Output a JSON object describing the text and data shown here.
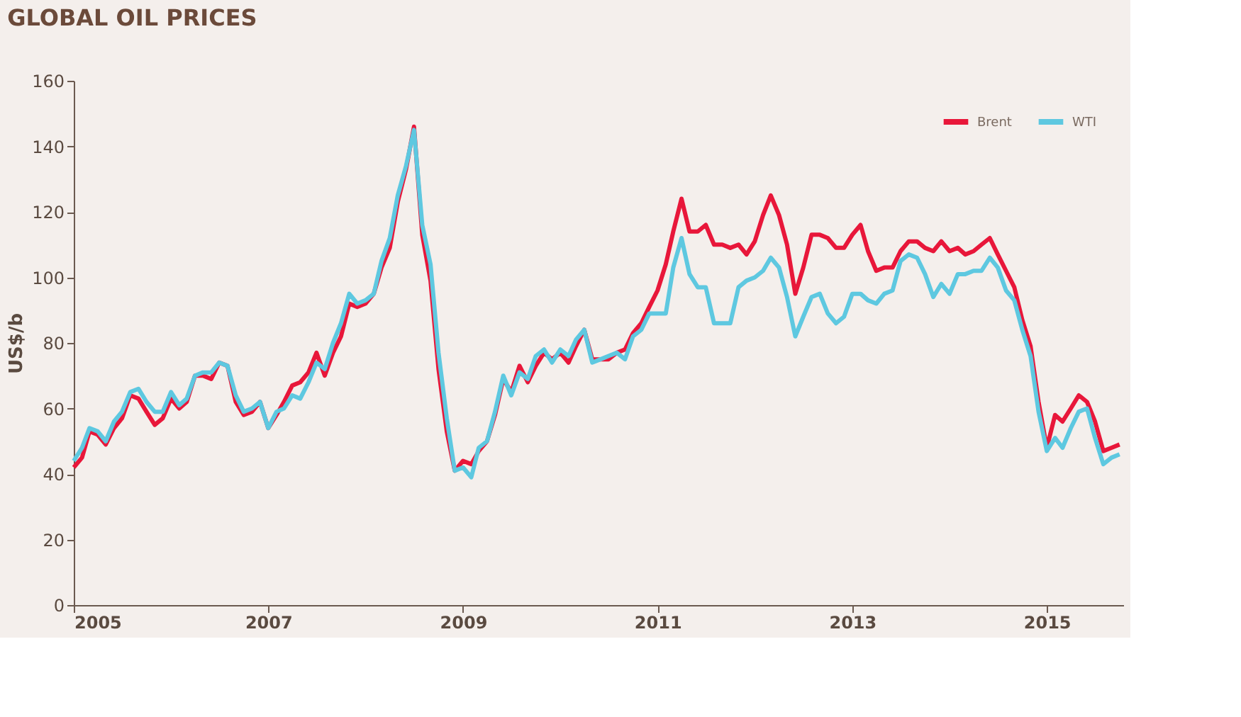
{
  "chart_data": {
    "type": "line",
    "title": "GLOBAL OIL PRICES",
    "ylabel": "US$/b",
    "x": [
      "2005-01",
      "2005-02",
      "2005-03",
      "2005-04",
      "2005-05",
      "2005-06",
      "2005-07",
      "2005-08",
      "2005-09",
      "2005-10",
      "2005-11",
      "2005-12",
      "2006-01",
      "2006-02",
      "2006-03",
      "2006-04",
      "2006-05",
      "2006-06",
      "2006-07",
      "2006-08",
      "2006-09",
      "2006-10",
      "2006-11",
      "2006-12",
      "2007-01",
      "2007-02",
      "2007-03",
      "2007-04",
      "2007-05",
      "2007-06",
      "2007-07",
      "2007-08",
      "2007-09",
      "2007-10",
      "2007-11",
      "2007-12",
      "2008-01",
      "2008-02",
      "2008-03",
      "2008-04",
      "2008-05",
      "2008-06",
      "2008-07",
      "2008-08",
      "2008-09",
      "2008-10",
      "2008-11",
      "2008-12",
      "2009-01",
      "2009-02",
      "2009-03",
      "2009-04",
      "2009-05",
      "2009-06",
      "2009-07",
      "2009-08",
      "2009-09",
      "2009-10",
      "2009-11",
      "2009-12",
      "2010-01",
      "2010-02",
      "2010-03",
      "2010-04",
      "2010-05",
      "2010-06",
      "2010-07",
      "2010-08",
      "2010-09",
      "2010-10",
      "2010-11",
      "2010-12",
      "2011-01",
      "2011-02",
      "2011-03",
      "2011-04",
      "2011-05",
      "2011-06",
      "2011-07",
      "2011-08",
      "2011-09",
      "2011-10",
      "2011-11",
      "2011-12",
      "2012-01",
      "2012-02",
      "2012-03",
      "2012-04",
      "2012-05",
      "2012-06",
      "2012-07",
      "2012-08",
      "2012-09",
      "2012-10",
      "2012-11",
      "2012-12",
      "2013-01",
      "2013-02",
      "2013-03",
      "2013-04",
      "2013-05",
      "2013-06",
      "2013-07",
      "2013-08",
      "2013-09",
      "2013-10",
      "2013-11",
      "2013-12",
      "2014-01",
      "2014-02",
      "2014-03",
      "2014-04",
      "2014-05",
      "2014-06",
      "2014-07",
      "2014-08",
      "2014-09",
      "2014-10",
      "2014-11",
      "2014-12",
      "2015-01",
      "2015-02",
      "2015-03",
      "2015-04",
      "2015-05",
      "2015-06",
      "2015-07",
      "2015-08",
      "2015-09",
      "2015-10"
    ],
    "series": [
      {
        "name": "Brent",
        "color": "#e8173a",
        "values": [
          42,
          45,
          53,
          52,
          49,
          54,
          57,
          64,
          63,
          59,
          55,
          57,
          63,
          60,
          62,
          70,
          70,
          69,
          74,
          73,
          62,
          58,
          59,
          62,
          54,
          58,
          62,
          67,
          68,
          71,
          77,
          70,
          77,
          82,
          92,
          91,
          92,
          95,
          103,
          109,
          123,
          133,
          146,
          113,
          99,
          72,
          53,
          41,
          44,
          43,
          47,
          50,
          58,
          69,
          65,
          73,
          68,
          73,
          77,
          75,
          77,
          74,
          79,
          84,
          75,
          75,
          75,
          77,
          78,
          83,
          86,
          91,
          96,
          104,
          114,
          124,
          114,
          114,
          116,
          110,
          110,
          109,
          110,
          107,
          111,
          119,
          125,
          119,
          110,
          95,
          103,
          113,
          113,
          112,
          109,
          109,
          113,
          116,
          108,
          102,
          103,
          103,
          108,
          111,
          111,
          109,
          108,
          111,
          108,
          109,
          107,
          108,
          110,
          112,
          107,
          102,
          97,
          87,
          79,
          62,
          48,
          58,
          56,
          60,
          64,
          62,
          56,
          47,
          48,
          49
        ]
      },
      {
        "name": "WTI",
        "color": "#5ec8e0",
        "values": [
          44,
          48,
          54,
          53,
          50,
          56,
          59,
          65,
          66,
          62,
          59,
          59,
          65,
          61,
          63,
          70,
          71,
          71,
          74,
          73,
          64,
          59,
          60,
          62,
          54,
          59,
          60,
          64,
          63,
          68,
          74,
          72,
          80,
          86,
          95,
          92,
          93,
          95,
          105,
          112,
          125,
          134,
          145,
          116,
          104,
          77,
          57,
          41,
          42,
          39,
          48,
          50,
          59,
          70,
          64,
          71,
          69,
          76,
          78,
          74,
          78,
          76,
          81,
          84,
          74,
          75,
          76,
          77,
          75,
          82,
          84,
          89,
          89,
          89,
          103,
          112,
          101,
          97,
          97,
          86,
          86,
          86,
          97,
          99,
          100,
          102,
          106,
          103,
          94,
          82,
          88,
          94,
          95,
          89,
          86,
          88,
          95,
          95,
          93,
          92,
          95,
          96,
          105,
          107,
          106,
          101,
          94,
          98,
          95,
          101,
          101,
          102,
          102,
          106,
          103,
          96,
          93,
          84,
          76,
          59,
          47,
          51,
          48,
          54,
          59,
          60,
          51,
          43,
          45,
          46
        ]
      }
    ],
    "xlim": [
      "2005-01-01",
      "2015-10-15"
    ],
    "xticks": [
      "2005",
      "2007",
      "2009",
      "2011",
      "2013",
      "2015"
    ],
    "ylim": [
      0,
      160
    ],
    "yticks": [
      0,
      20,
      40,
      60,
      80,
      100,
      120,
      140,
      160
    ],
    "legend": "top right",
    "grid": false,
    "line_style": "solid",
    "marker": "none"
  }
}
